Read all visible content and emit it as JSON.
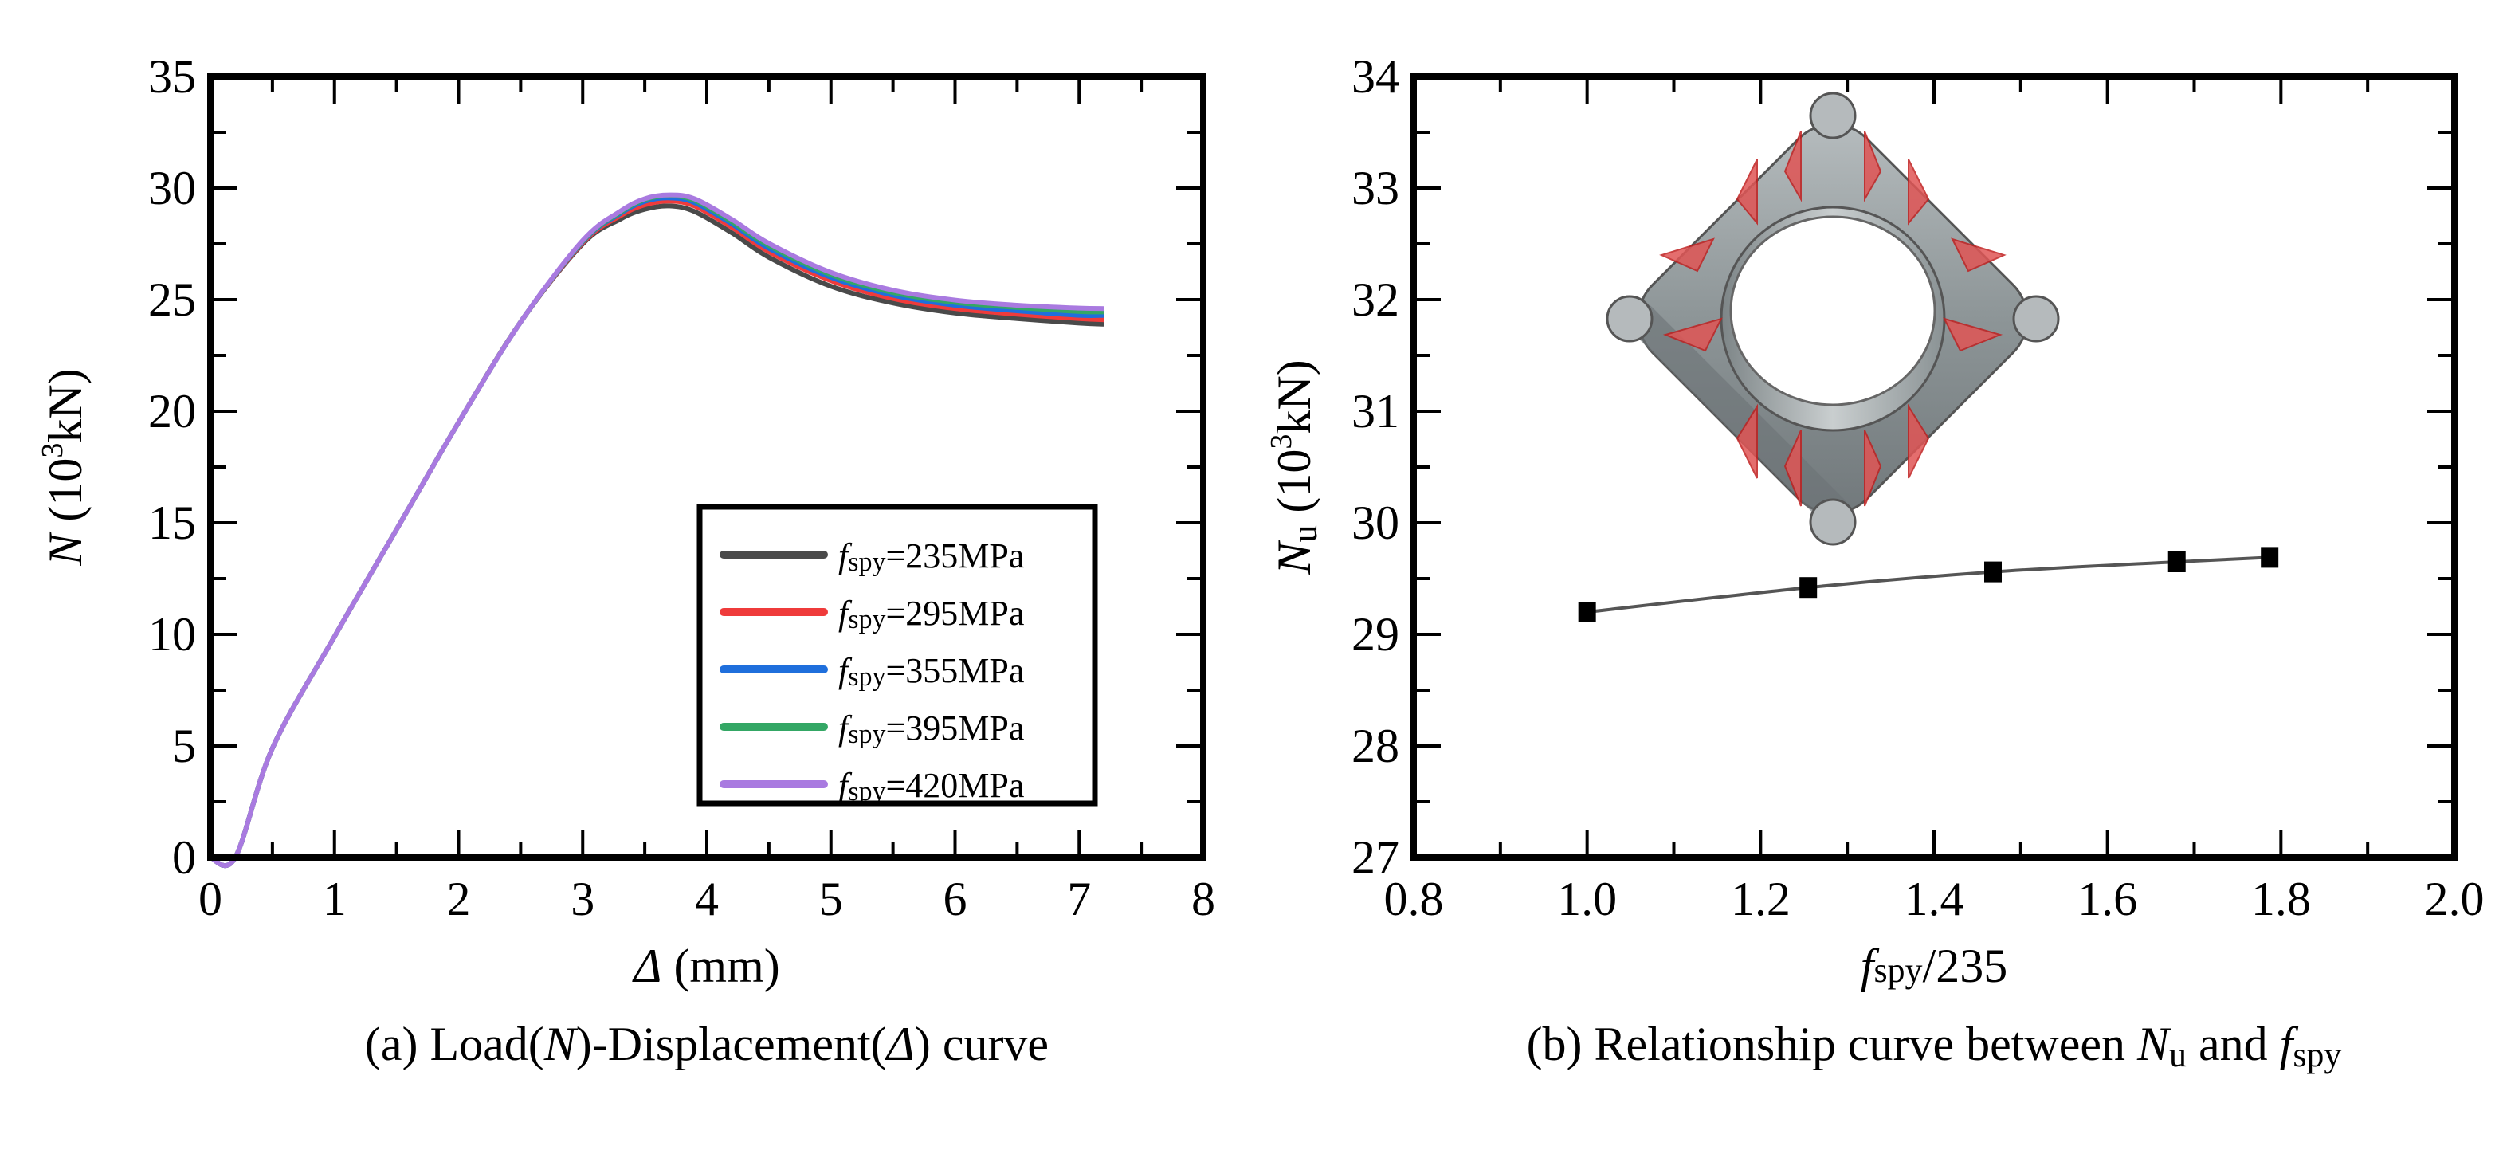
{
  "chart_data": [
    {
      "type": "line",
      "panel": "a",
      "caption": {
        "prefix": "(a) Load(",
        "n": "N",
        "mid": ")-Displacement(",
        "delta": "Δ",
        "suffix": ") curve"
      },
      "xlabel": {
        "symbol": "Δ",
        "unit": " (mm)"
      },
      "ylabel": {
        "symbol": "N",
        "unit_pre": " (10",
        "unit_sup": "3",
        "unit_post": "kN)"
      },
      "xlim": [
        0,
        8
      ],
      "ylim": [
        0,
        35
      ],
      "xticks": [
        "0",
        "1",
        "2",
        "3",
        "4",
        "5",
        "6",
        "7",
        "8"
      ],
      "yticks": [
        "0",
        "5",
        "10",
        "15",
        "20",
        "25",
        "30",
        "35"
      ],
      "legend_position": "lower-right",
      "x": [
        0,
        0.2,
        0.5,
        1,
        1.5,
        2,
        2.5,
        3,
        3.3,
        3.5,
        3.7,
        3.9,
        4.2,
        4.5,
        5,
        5.5,
        6,
        6.5,
        7,
        7.2
      ],
      "series": [
        {
          "name_symbol": "f",
          "name_sub": "spy",
          "name_value": "=235MPa",
          "color": "#4a4a4a",
          "values": [
            0,
            0,
            4.9,
            9.9,
            14.7,
            19.5,
            24.0,
            27.5,
            28.6,
            29.05,
            29.2,
            28.95,
            28.0,
            26.9,
            25.6,
            24.85,
            24.4,
            24.15,
            23.95,
            23.9
          ]
        },
        {
          "name_symbol": "f",
          "name_sub": "spy",
          "name_value": "=295MPa",
          "color": "#ef3b3b",
          "values": [
            0,
            0,
            4.9,
            9.9,
            14.7,
            19.5,
            24.0,
            27.55,
            28.75,
            29.25,
            29.42,
            29.2,
            28.25,
            27.15,
            25.85,
            25.05,
            24.6,
            24.35,
            24.15,
            24.1
          ]
        },
        {
          "name_symbol": "f",
          "name_sub": "spy",
          "name_value": "=355MPa",
          "color": "#1f6fdc",
          "values": [
            0,
            0,
            4.9,
            9.9,
            14.7,
            19.5,
            24.0,
            27.6,
            28.85,
            29.4,
            29.56,
            29.35,
            28.4,
            27.3,
            26.0,
            25.2,
            24.75,
            24.5,
            24.3,
            24.3
          ]
        },
        {
          "name_symbol": "f",
          "name_sub": "spy",
          "name_value": "=395MPa",
          "color": "#34a765",
          "values": [
            0,
            0,
            4.9,
            9.9,
            14.7,
            19.5,
            24.0,
            27.62,
            28.9,
            29.48,
            29.65,
            29.45,
            28.5,
            27.42,
            26.12,
            25.32,
            24.88,
            24.65,
            24.47,
            24.45
          ]
        },
        {
          "name_symbol": "f",
          "name_sub": "spy",
          "name_value": "=420MPa",
          "color": "#a97ae0",
          "values": [
            0,
            0,
            4.9,
            9.9,
            14.7,
            19.5,
            24.0,
            27.65,
            28.95,
            29.52,
            29.69,
            29.52,
            28.6,
            27.52,
            26.22,
            25.42,
            24.98,
            24.75,
            24.62,
            24.6
          ]
        }
      ]
    },
    {
      "type": "line",
      "panel": "b",
      "caption": {
        "prefix": "(b) Relationship curve between ",
        "n": "N",
        "n_sub": "u",
        "mid": " and ",
        "f": "f",
        "f_sub": "spy"
      },
      "xlabel": {
        "symbol": "f",
        "sub": "spy",
        "rest": "/235"
      },
      "ylabel": {
        "symbol": "N",
        "sub": "u",
        "unit_pre": " (10",
        "unit_sup": "3",
        "unit_post": "kN)"
      },
      "xlim": [
        0.8,
        2.0
      ],
      "ylim": [
        27,
        34
      ],
      "xticks": [
        "0.8",
        "1.0",
        "1.2",
        "1.4",
        "1.6",
        "1.8",
        "2.0"
      ],
      "yticks": [
        "27",
        "28",
        "29",
        "30",
        "31",
        "32",
        "33",
        "34"
      ],
      "marker": "square",
      "line_color": "#555555",
      "x": [
        1.0,
        1.255,
        1.468,
        1.68,
        1.787
      ],
      "values": [
        29.2,
        29.42,
        29.56,
        29.65,
        29.69
      ],
      "inset": "3d-model-square-steel-tube-ring-with-red-stiffeners"
    }
  ]
}
